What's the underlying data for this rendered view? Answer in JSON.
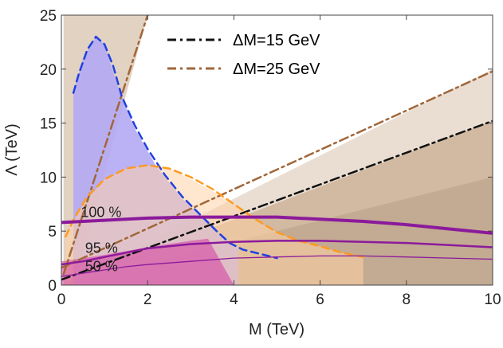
{
  "chart_data": {
    "type": "line",
    "title": "",
    "xlabel": "M (TeV)",
    "ylabel": "Λ (TeV)",
    "xlim": [
      0,
      10
    ],
    "ylim": [
      0,
      25
    ],
    "xticks": [
      0,
      2,
      4,
      6,
      8,
      10
    ],
    "yticks": [
      0,
      5,
      10,
      15,
      20,
      25
    ],
    "grid": false,
    "legend_placement": "top-center",
    "legend": [
      {
        "label": "ΔM=15 GeV",
        "color": "#111111",
        "style": "dot-dash"
      },
      {
        "label": "ΔM=25 GeV",
        "color": "#a0663a",
        "style": "dot-dash"
      }
    ],
    "regions": [
      {
        "name": "",
        "color": "#6f6f6f",
        "opacity": 0.9,
        "points": [
          [
            0,
            0
          ],
          [
            10,
            10
          ],
          [
            10,
            0
          ]
        ]
      },
      {
        "name": "",
        "color": "#b8926e",
        "opacity": 0.75,
        "points": [
          [
            0,
            0
          ],
          [
            10,
            15.2
          ],
          [
            10,
            0
          ]
        ]
      },
      {
        "name": "",
        "color": "#d8c3ad",
        "opacity": 0.55,
        "points": [
          [
            0,
            0
          ],
          [
            10,
            20
          ],
          [
            10,
            0
          ]
        ]
      },
      {
        "name": "",
        "color": "#d8c3ad",
        "opacity": 0.75,
        "points": [
          [
            0.05,
            0
          ],
          [
            0.05,
            25
          ],
          [
            2,
            25
          ],
          [
            0.3,
            0
          ]
        ]
      },
      {
        "name": "",
        "color": "#c9a9dd",
        "opacity": 0.75,
        "points": [
          [
            0.28,
            17.8
          ],
          [
            0.5,
            21
          ],
          [
            0.8,
            23
          ],
          [
            1,
            22.3
          ],
          [
            1.3,
            18.5
          ],
          [
            1.7,
            14.5
          ],
          [
            2.2,
            11
          ],
          [
            2.8,
            8
          ],
          [
            3.3,
            6.2
          ],
          [
            3.8,
            4.3
          ],
          [
            4.1,
            3.5
          ],
          [
            4.1,
            0
          ],
          [
            0.28,
            0
          ]
        ]
      },
      {
        "name": "",
        "color": "#a8a8ff",
        "opacity": 0.6,
        "points": [
          [
            0.28,
            17.8
          ],
          [
            0.5,
            21
          ],
          [
            0.8,
            23
          ],
          [
            1,
            22.3
          ],
          [
            1.3,
            18.5
          ],
          [
            1.7,
            14.5
          ],
          [
            2.2,
            11
          ],
          [
            2.8,
            8
          ],
          [
            3.3,
            6.2
          ],
          [
            3.8,
            4.3
          ],
          [
            4.1,
            3.5
          ],
          [
            4.1,
            0
          ],
          [
            0.28,
            0
          ]
        ]
      },
      {
        "name": "",
        "color": "#ffd2a6",
        "opacity": 0.55,
        "points": [
          [
            0.1,
            4.5
          ],
          [
            0.5,
            7.5
          ],
          [
            1,
            9.8
          ],
          [
            1.5,
            10.8
          ],
          [
            2,
            11.1
          ],
          [
            2.5,
            10.8
          ],
          [
            3,
            9.8
          ],
          [
            3.5,
            8.7
          ],
          [
            4,
            7.5
          ],
          [
            4.5,
            6
          ],
          [
            5,
            4.9
          ],
          [
            5.5,
            4.1
          ],
          [
            6,
            3.6
          ],
          [
            6.5,
            3
          ],
          [
            7,
            2.6
          ],
          [
            7,
            0
          ],
          [
            0.1,
            0
          ]
        ]
      },
      {
        "name": "",
        "color": "#d63aa0",
        "opacity": 0.55,
        "points": [
          [
            0,
            0
          ],
          [
            0,
            2.2
          ],
          [
            1,
            2.8
          ],
          [
            2,
            3.5
          ],
          [
            3,
            4.1
          ],
          [
            3.4,
            4.3
          ],
          [
            4,
            0
          ]
        ]
      }
    ],
    "series": [
      {
        "name": "",
        "color": "#111111",
        "style": "dot-dash",
        "width": 2.5,
        "x": [
          0,
          10
        ],
        "y": [
          0.5,
          15.2
        ]
      },
      {
        "name": "",
        "color": "#a0663a",
        "style": "dot-dash",
        "width": 2.5,
        "x": [
          0.05,
          2.0
        ],
        "y": [
          1.0,
          25
        ]
      },
      {
        "name": "",
        "color": "#a0663a",
        "style": "dot-dash",
        "width": 2.5,
        "x": [
          0,
          10
        ],
        "y": [
          1.6,
          19.8
        ]
      },
      {
        "name": "",
        "color": "#2040e0",
        "style": "dashed",
        "width": 2.5,
        "x": [
          0.28,
          0.4,
          0.6,
          0.8,
          1.0,
          1.2,
          1.4,
          1.7,
          2.0,
          2.4,
          2.8,
          3.2,
          3.6,
          3.9,
          4.2,
          4.6,
          5.0
        ],
        "y": [
          17.8,
          19.5,
          21.8,
          23.0,
          22.3,
          20.3,
          17.5,
          14.8,
          12.6,
          10.2,
          8.2,
          6.6,
          5.0,
          3.9,
          3.3,
          2.9,
          2.5
        ]
      },
      {
        "name": "",
        "color": "#ff9a20",
        "style": "dashed",
        "width": 2.5,
        "x": [
          0.1,
          0.3,
          0.6,
          1.0,
          1.5,
          2.0,
          2.5,
          3.0,
          3.5,
          4.0,
          4.5,
          5.0,
          5.5,
          6.0,
          6.5,
          7.0
        ],
        "y": [
          4.5,
          6.2,
          8.2,
          9.8,
          10.8,
          11.1,
          10.8,
          10.0,
          8.9,
          7.5,
          6.1,
          4.9,
          4.1,
          3.6,
          3.0,
          2.6
        ]
      },
      {
        "name": "",
        "color": "#8b1a9b",
        "style": "solid",
        "width": 4,
        "x": [
          0,
          0.5,
          1,
          2,
          3,
          4,
          5,
          6,
          7,
          8,
          9,
          10
        ],
        "y": [
          5.8,
          5.9,
          6.0,
          6.2,
          6.3,
          6.3,
          6.3,
          6.1,
          5.9,
          5.6,
          5.2,
          4.8
        ]
      },
      {
        "name": "",
        "color": "#8b1a9b",
        "style": "solid",
        "width": 2.5,
        "x": [
          0,
          0.5,
          1,
          1.5,
          2,
          3,
          4,
          5,
          6,
          7,
          8,
          9,
          10
        ],
        "y": [
          1.9,
          2.2,
          2.6,
          3.0,
          3.4,
          3.8,
          4.0,
          4.1,
          4.1,
          4.0,
          3.9,
          3.7,
          3.5
        ]
      },
      {
        "name": "",
        "color": "#8b1a9b",
        "style": "solid",
        "width": 1.3,
        "x": [
          0,
          0.5,
          1,
          1.5,
          2,
          3,
          4,
          5,
          6,
          7,
          8,
          9,
          10
        ],
        "y": [
          0.8,
          1.1,
          1.4,
          1.7,
          1.9,
          2.2,
          2.5,
          2.6,
          2.7,
          2.7,
          2.6,
          2.5,
          2.4
        ]
      }
    ],
    "annotations": [
      {
        "text": "100 %",
        "x": 0.45,
        "y": 6.3
      },
      {
        "text": "95 %",
        "x": 0.55,
        "y": 3.0
      },
      {
        "text": "50 %",
        "x": 0.55,
        "y": 1.3
      }
    ]
  }
}
